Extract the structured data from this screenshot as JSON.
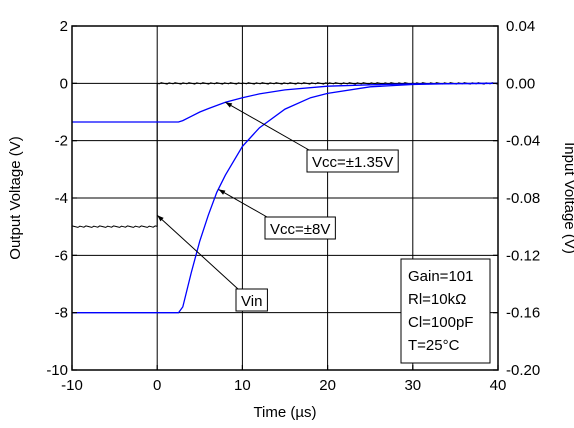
{
  "chart_data": {
    "type": "line",
    "title": "",
    "xlabel": "Time (µs)",
    "ylabel_left": "Output Voltage (V)",
    "ylabel_right": "Input Voltage (V)",
    "xlim": [
      -10,
      40
    ],
    "ylim_left": [
      -10,
      2
    ],
    "ylim_right": [
      -0.2,
      0.04
    ],
    "grid": true,
    "x_ticks": [
      "-10",
      "0",
      "10",
      "20",
      "30",
      "40"
    ],
    "y_left_ticks": [
      "2",
      "0",
      "-2",
      "-4",
      "-6",
      "-8",
      "-10"
    ],
    "y_right_ticks": [
      "0.04",
      "0.00",
      "-0.04",
      "-0.08",
      "-0.12",
      "-0.16",
      "-0.20"
    ],
    "series": [
      {
        "name": "Vin",
        "axis": "left",
        "color": "#000000",
        "x": [
          -10,
          0,
          0,
          10,
          20,
          30,
          40
        ],
        "y": [
          -5.0,
          -5.0,
          0.0,
          0.0,
          0.0,
          0.0,
          0.0
        ]
      },
      {
        "name": "Vcc=±1.35V",
        "axis": "left",
        "color": "#0000ff",
        "x": [
          -10,
          0,
          2.5,
          3,
          4,
          5,
          6,
          8,
          10,
          12,
          15,
          20,
          25,
          30,
          35,
          40
        ],
        "y": [
          -1.35,
          -1.35,
          -1.35,
          -1.3,
          -1.15,
          -1.0,
          -0.88,
          -0.66,
          -0.5,
          -0.37,
          -0.23,
          -0.1,
          -0.05,
          -0.02,
          -0.01,
          0.0
        ]
      },
      {
        "name": "Vcc=±8V",
        "axis": "left",
        "color": "#0000ff",
        "x": [
          -10,
          0,
          2.5,
          3,
          4,
          5,
          6,
          7,
          8,
          10,
          12,
          15,
          18,
          20,
          25,
          30,
          35,
          40
        ],
        "y": [
          -8.0,
          -8.0,
          -8.0,
          -7.8,
          -6.6,
          -5.5,
          -4.6,
          -3.8,
          -3.2,
          -2.2,
          -1.55,
          -0.9,
          -0.5,
          -0.35,
          -0.12,
          -0.04,
          -0.01,
          0.0
        ]
      }
    ],
    "annotations": [
      {
        "text": "Vcc=±1.35V",
        "target": "Vcc=±1.35V"
      },
      {
        "text": "Vcc=±8V",
        "target": "Vcc=±8V"
      },
      {
        "text": "Vin",
        "target": "Vin"
      }
    ],
    "conditions": [
      "Gain=101",
      "Rl=10kΩ",
      "Cl=100pF",
      "T=25°C"
    ]
  }
}
